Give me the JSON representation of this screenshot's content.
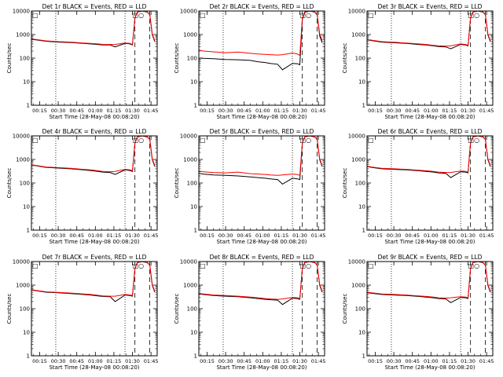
{
  "figure": {
    "count_scale": "log",
    "y_range": [
      1,
      10000
    ],
    "y_tick_labels": [
      "1",
      "10",
      "100",
      "1000",
      "10000"
    ],
    "x_tick_labels": [
      "00:15",
      "00:30",
      "00:45",
      "01:00",
      "01:15",
      "01:30",
      "01:45"
    ],
    "x_range_minutes": [
      8.33,
      110
    ],
    "x_tick_minutes": [
      15,
      30,
      45,
      60,
      75,
      90,
      105
    ],
    "ylabel": "Counts/sec",
    "xlabel": "Start Time (28-May-08 00:08:20)",
    "series_colors": {
      "events": "#000000",
      "lld": "#ff0000"
    },
    "markers": [
      {
        "style": "dotted",
        "minute": 28
      },
      {
        "style": "dotted",
        "minute": 84
      },
      {
        "style": "dashed",
        "minute": 92
      },
      {
        "style": "dashed",
        "minute": 104
      }
    ],
    "corner_glyphs": {
      "left": "□",
      "right": "□○"
    }
  },
  "chart_data": [
    {
      "type": "line",
      "title": "Det 1r  BLACK = Events, RED = LLD",
      "x": [
        8.5,
        12,
        20,
        30,
        40,
        50,
        56,
        62,
        66,
        72,
        76,
        84,
        88,
        90,
        92,
        94,
        98,
        100,
        102,
        104,
        106,
        108
      ],
      "series": [
        {
          "name": "Events",
          "values": [
            620,
            600,
            520,
            480,
            460,
            420,
            400,
            380,
            360,
            360,
            300,
            420,
            400,
            360,
            5000,
            9000,
            10000,
            9500,
            9000,
            7000,
            1000,
            500
          ]
        },
        {
          "name": "LLD",
          "values": [
            640,
            620,
            540,
            500,
            480,
            440,
            420,
            400,
            380,
            380,
            380,
            440,
            420,
            380,
            5200,
            9200,
            10000,
            9600,
            9200,
            7200,
            1100,
            550
          ]
        }
      ]
    },
    {
      "type": "line",
      "title": "Det 2r  BLACK = Events, RED = LLD",
      "x": [
        8.5,
        12,
        20,
        30,
        40,
        50,
        56,
        62,
        66,
        72,
        76,
        84,
        88,
        90,
        92,
        94,
        98,
        100,
        102,
        104,
        106,
        108
      ],
      "series": [
        {
          "name": "Events",
          "values": [
            100,
            98,
            95,
            88,
            85,
            80,
            70,
            65,
            60,
            55,
            32,
            60,
            58,
            52,
            4500,
            8800,
            10000,
            9500,
            9000,
            6800,
            900,
            450
          ]
        },
        {
          "name": "LLD",
          "values": [
            220,
            200,
            185,
            170,
            180,
            160,
            150,
            145,
            140,
            135,
            140,
            165,
            150,
            130,
            5000,
            9300,
            10000,
            9600,
            9200,
            7200,
            1100,
            550
          ]
        }
      ]
    },
    {
      "type": "line",
      "title": "Det 3r  BLACK = Events, RED = LLD",
      "x": [
        8.5,
        12,
        20,
        30,
        40,
        50,
        56,
        62,
        66,
        72,
        76,
        84,
        88,
        90,
        92,
        94,
        98,
        100,
        102,
        104,
        106,
        108
      ],
      "series": [
        {
          "name": "Events",
          "values": [
            600,
            560,
            480,
            450,
            420,
            380,
            360,
            330,
            310,
            300,
            250,
            380,
            360,
            330,
            5000,
            9000,
            10000,
            9500,
            9000,
            7000,
            1000,
            500
          ]
        },
        {
          "name": "LLD",
          "values": [
            620,
            580,
            500,
            470,
            440,
            400,
            380,
            350,
            330,
            320,
            330,
            400,
            380,
            350,
            5200,
            9200,
            10000,
            9600,
            9200,
            7200,
            1100,
            550
          ]
        }
      ]
    },
    {
      "type": "line",
      "title": "Det 4r  BLACK = Events, RED = LLD",
      "x": [
        8.5,
        12,
        20,
        30,
        40,
        50,
        56,
        62,
        66,
        72,
        76,
        84,
        88,
        90,
        92,
        94,
        98,
        100,
        102,
        104,
        106,
        108
      ],
      "series": [
        {
          "name": "Events",
          "values": [
            580,
            540,
            460,
            430,
            400,
            360,
            340,
            310,
            290,
            280,
            230,
            360,
            340,
            310,
            5000,
            9000,
            10000,
            9500,
            9000,
            7000,
            1000,
            500
          ]
        },
        {
          "name": "LLD",
          "values": [
            600,
            560,
            480,
            450,
            420,
            380,
            360,
            330,
            310,
            300,
            310,
            380,
            360,
            330,
            5200,
            9200,
            10000,
            9600,
            9200,
            7200,
            1100,
            550
          ]
        }
      ]
    },
    {
      "type": "line",
      "title": "Det 5r  BLACK = Events, RED = LLD",
      "x": [
        8.5,
        12,
        20,
        30,
        40,
        50,
        56,
        62,
        66,
        72,
        76,
        84,
        88,
        90,
        92,
        94,
        98,
        100,
        102,
        104,
        106,
        108
      ],
      "series": [
        {
          "name": "Events",
          "values": [
            260,
            240,
            220,
            210,
            200,
            180,
            170,
            160,
            150,
            140,
            90,
            160,
            150,
            140,
            5000,
            9000,
            10000,
            9500,
            9000,
            7000,
            1000,
            500
          ]
        },
        {
          "name": "LLD",
          "values": [
            320,
            300,
            280,
            270,
            290,
            250,
            240,
            230,
            220,
            210,
            220,
            240,
            230,
            210,
            5200,
            9200,
            10000,
            9600,
            9200,
            7200,
            1100,
            550
          ]
        }
      ]
    },
    {
      "type": "line",
      "title": "Det 6r  BLACK = Events, RED = LLD",
      "x": [
        8.5,
        12,
        20,
        30,
        40,
        50,
        56,
        62,
        66,
        72,
        76,
        84,
        88,
        90,
        92,
        94,
        98,
        100,
        102,
        104,
        106,
        108
      ],
      "series": [
        {
          "name": "Events",
          "values": [
            500,
            460,
            400,
            380,
            360,
            330,
            310,
            290,
            270,
            260,
            170,
            300,
            290,
            270,
            5000,
            9000,
            10000,
            9500,
            9000,
            7000,
            1000,
            500
          ]
        },
        {
          "name": "LLD",
          "values": [
            520,
            480,
            420,
            400,
            380,
            350,
            330,
            310,
            290,
            280,
            280,
            320,
            310,
            290,
            5200,
            9200,
            10000,
            9600,
            9200,
            7200,
            1100,
            550
          ]
        }
      ]
    },
    {
      "type": "line",
      "title": "Det 7r  BLACK = Events, RED = LLD",
      "x": [
        8.5,
        12,
        20,
        30,
        40,
        50,
        56,
        62,
        66,
        72,
        76,
        84,
        88,
        90,
        92,
        94,
        98,
        100,
        102,
        104,
        106,
        108
      ],
      "series": [
        {
          "name": "Events",
          "values": [
            620,
            580,
            500,
            470,
            440,
            400,
            380,
            350,
            330,
            320,
            200,
            380,
            360,
            340,
            5000,
            9000,
            10000,
            9500,
            9000,
            7000,
            1000,
            500
          ]
        },
        {
          "name": "LLD",
          "values": [
            640,
            600,
            520,
            490,
            460,
            420,
            400,
            370,
            350,
            340,
            340,
            400,
            380,
            360,
            5200,
            9200,
            10000,
            9600,
            9200,
            7200,
            1100,
            550
          ]
        }
      ]
    },
    {
      "type": "line",
      "title": "Det 8r  BLACK = Events, RED = LLD",
      "x": [
        8.5,
        12,
        20,
        30,
        40,
        50,
        56,
        62,
        66,
        72,
        76,
        84,
        88,
        90,
        92,
        94,
        98,
        100,
        102,
        104,
        106,
        108
      ],
      "series": [
        {
          "name": "Events",
          "values": [
            420,
            400,
            360,
            340,
            320,
            290,
            270,
            250,
            240,
            230,
            150,
            280,
            270,
            250,
            5000,
            9000,
            10000,
            9500,
            9000,
            7000,
            1000,
            500
          ]
        },
        {
          "name": "LLD",
          "values": [
            440,
            420,
            380,
            360,
            340,
            310,
            290,
            270,
            260,
            250,
            260,
            300,
            290,
            270,
            5200,
            9200,
            10000,
            9600,
            9200,
            7200,
            1100,
            550
          ]
        }
      ]
    },
    {
      "type": "line",
      "title": "Det 9r  BLACK = Events, RED = LLD",
      "x": [
        8.5,
        12,
        20,
        30,
        40,
        50,
        56,
        62,
        66,
        72,
        76,
        84,
        88,
        90,
        92,
        94,
        98,
        100,
        102,
        104,
        106,
        108
      ],
      "series": [
        {
          "name": "Events",
          "values": [
            480,
            450,
            400,
            380,
            360,
            330,
            310,
            290,
            270,
            260,
            180,
            300,
            290,
            270,
            5000,
            9000,
            10000,
            9500,
            9000,
            7000,
            1000,
            500
          ]
        },
        {
          "name": "LLD",
          "values": [
            500,
            470,
            420,
            400,
            380,
            350,
            330,
            310,
            290,
            280,
            290,
            320,
            310,
            290,
            5200,
            9200,
            10000,
            9600,
            9200,
            7200,
            1100,
            550
          ]
        }
      ]
    }
  ]
}
